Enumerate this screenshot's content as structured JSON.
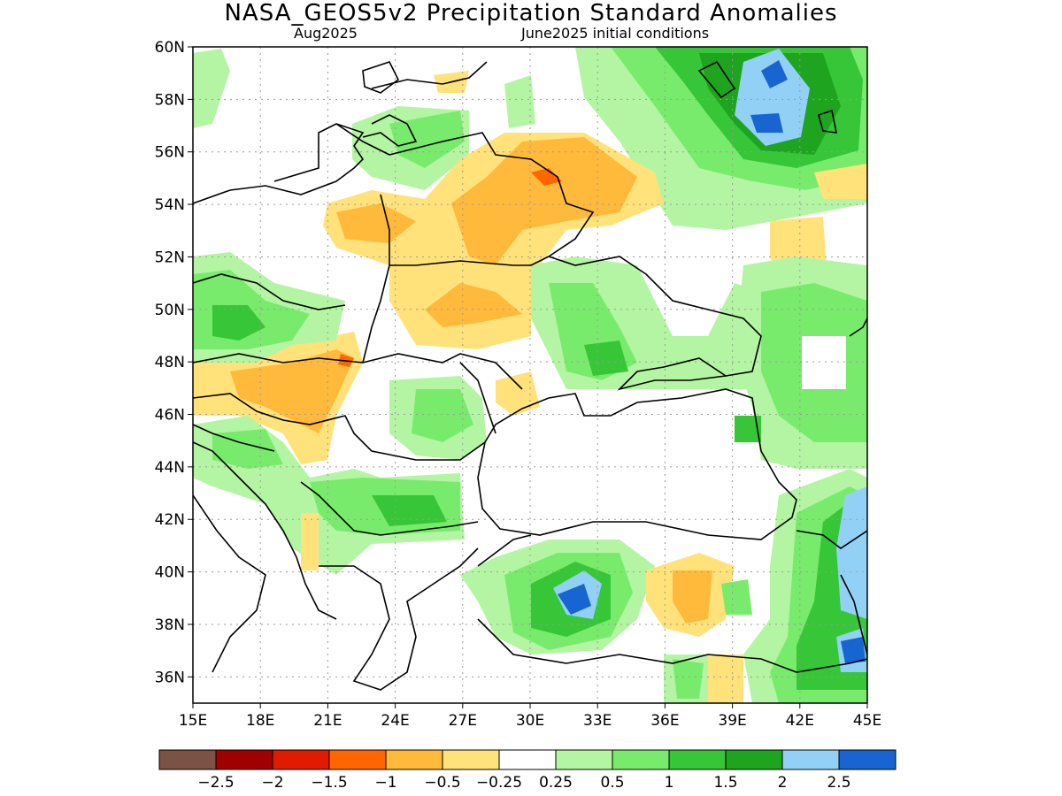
{
  "title": "NASA_GEOS5v2 Precipitation Standard Anomalies",
  "subtitle_left": "Aug2025",
  "subtitle_right": "June2025 initial conditions",
  "map": {
    "lon_range": [
      15,
      45
    ],
    "lat_range": [
      35,
      60
    ],
    "x_ticks": [
      "15E",
      "18E",
      "21E",
      "24E",
      "27E",
      "30E",
      "33E",
      "36E",
      "39E",
      "42E",
      "45E"
    ],
    "y_ticks": [
      "60N",
      "58N",
      "56N",
      "54N",
      "52N",
      "50N",
      "48N",
      "46N",
      "44N",
      "42N",
      "40N",
      "38N",
      "36N"
    ]
  },
  "colorbar": {
    "colors": [
      "#7b5246",
      "#a00000",
      "#e01b00",
      "#ff6600",
      "#ffb93b",
      "#ffe27a",
      "#ffffff",
      "#b4f5a3",
      "#79eb6c",
      "#36c637",
      "#1ea41f",
      "#93d0f6",
      "#1865d2"
    ],
    "labels": [
      "−2.5",
      "−2",
      "−1.5",
      "−1",
      "−0.5",
      "−0.25",
      "0.25",
      "0.5",
      "1",
      "1.5",
      "2",
      "2.5"
    ]
  }
}
